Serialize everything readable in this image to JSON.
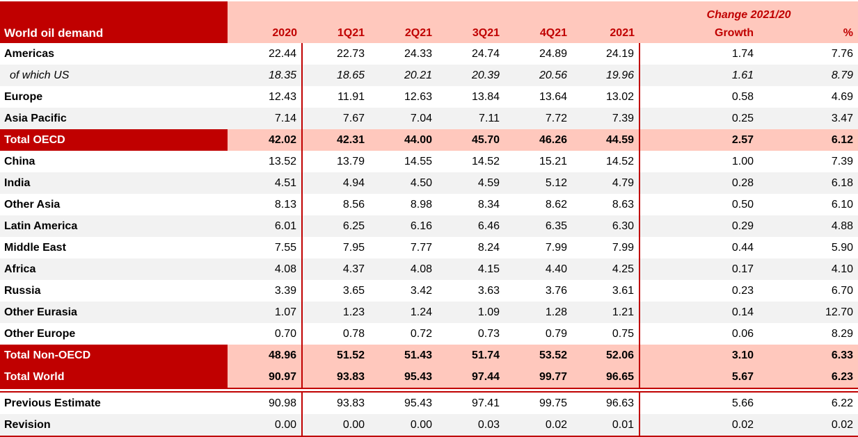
{
  "colors": {
    "accent_dark_red": "#C00000",
    "header_pink": "#FFC8BD",
    "stripe_gray": "#F2F2F2",
    "total_label_text": "#FFFFFF"
  },
  "chart_data": {
    "type": "table",
    "title": "World oil demand",
    "group_header": "Change 2021/20",
    "columns": [
      "2020",
      "1Q21",
      "2Q21",
      "3Q21",
      "4Q21",
      "2021",
      "Growth",
      "%"
    ],
    "rows": [
      {
        "label": "Americas",
        "style": "plain",
        "values": [
          "22.44",
          "22.73",
          "24.33",
          "24.74",
          "24.89",
          "24.19",
          "1.74",
          "7.76"
        ]
      },
      {
        "label": "of which US",
        "style": "sub",
        "values": [
          "18.35",
          "18.65",
          "20.21",
          "20.39",
          "20.56",
          "19.96",
          "1.61",
          "8.79"
        ]
      },
      {
        "label": "Europe",
        "style": "plain",
        "values": [
          "12.43",
          "11.91",
          "12.63",
          "13.84",
          "13.64",
          "13.02",
          "0.58",
          "4.69"
        ]
      },
      {
        "label": "Asia Pacific",
        "style": "shaded",
        "values": [
          "7.14",
          "7.67",
          "7.04",
          "7.11",
          "7.72",
          "7.39",
          "0.25",
          "3.47"
        ]
      },
      {
        "label": "Total OECD",
        "style": "total",
        "values": [
          "42.02",
          "42.31",
          "44.00",
          "45.70",
          "46.26",
          "44.59",
          "2.57",
          "6.12"
        ]
      },
      {
        "label": "China",
        "style": "plain",
        "values": [
          "13.52",
          "13.79",
          "14.55",
          "14.52",
          "15.21",
          "14.52",
          "1.00",
          "7.39"
        ]
      },
      {
        "label": "India",
        "style": "shaded",
        "values": [
          "4.51",
          "4.94",
          "4.50",
          "4.59",
          "5.12",
          "4.79",
          "0.28",
          "6.18"
        ]
      },
      {
        "label": "Other Asia",
        "style": "plain",
        "values": [
          "8.13",
          "8.56",
          "8.98",
          "8.34",
          "8.62",
          "8.63",
          "0.50",
          "6.10"
        ]
      },
      {
        "label": "Latin America",
        "style": "shaded",
        "values": [
          "6.01",
          "6.25",
          "6.16",
          "6.46",
          "6.35",
          "6.30",
          "0.29",
          "4.88"
        ]
      },
      {
        "label": "Middle East",
        "style": "plain",
        "values": [
          "7.55",
          "7.95",
          "7.77",
          "8.24",
          "7.99",
          "7.99",
          "0.44",
          "5.90"
        ]
      },
      {
        "label": "Africa",
        "style": "shaded",
        "values": [
          "4.08",
          "4.37",
          "4.08",
          "4.15",
          "4.40",
          "4.25",
          "0.17",
          "4.10"
        ]
      },
      {
        "label": "Russia",
        "style": "plain",
        "values": [
          "3.39",
          "3.65",
          "3.42",
          "3.63",
          "3.76",
          "3.61",
          "0.23",
          "6.70"
        ]
      },
      {
        "label": "Other Eurasia",
        "style": "shaded",
        "values": [
          "1.07",
          "1.23",
          "1.24",
          "1.09",
          "1.28",
          "1.21",
          "0.14",
          "12.70"
        ]
      },
      {
        "label": "Other Europe",
        "style": "plain",
        "values": [
          "0.70",
          "0.78",
          "0.72",
          "0.73",
          "0.79",
          "0.75",
          "0.06",
          "8.29"
        ]
      },
      {
        "label": "Total Non-OECD",
        "style": "total",
        "values": [
          "48.96",
          "51.52",
          "51.43",
          "51.74",
          "53.52",
          "52.06",
          "3.10",
          "6.33"
        ]
      },
      {
        "label": "Total World",
        "style": "total",
        "separator_after": true,
        "values": [
          "90.97",
          "93.83",
          "95.43",
          "97.44",
          "99.77",
          "96.65",
          "5.67",
          "6.23"
        ]
      },
      {
        "label": "Previous Estimate",
        "style": "plain",
        "values": [
          "90.98",
          "93.83",
          "95.43",
          "97.41",
          "99.75",
          "96.63",
          "5.66",
          "6.22"
        ]
      },
      {
        "label": "Revision",
        "style": "shaded",
        "values": [
          "0.00",
          "0.00",
          "0.00",
          "0.03",
          "0.02",
          "0.01",
          "0.02",
          "0.02"
        ]
      }
    ]
  }
}
